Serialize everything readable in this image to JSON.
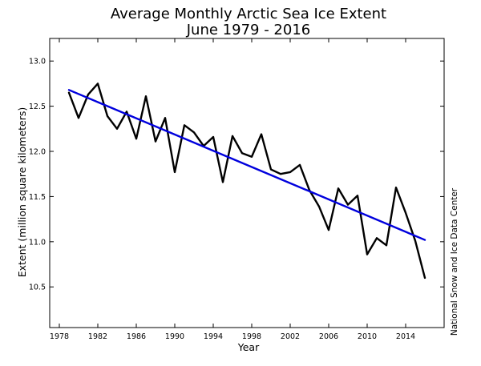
{
  "chart_data": {
    "type": "line",
    "title": "Average Monthly Arctic Sea Ice Extent",
    "subtitle": "June 1979 - 2016",
    "xlabel": "Year",
    "ylabel": "Extent (million square kilometers)",
    "credit": "National Snow and Ice Data Center",
    "xlim": [
      1977,
      2018
    ],
    "ylim": [
      10.05,
      13.25
    ],
    "xticks": [
      1978,
      1982,
      1986,
      1990,
      1994,
      1998,
      2002,
      2006,
      2010,
      2014
    ],
    "yticks": [
      10.5,
      11.0,
      11.5,
      12.0,
      12.5,
      13.0
    ],
    "xtick_labels": [
      "1978",
      "1982",
      "1986",
      "1990",
      "1994",
      "1998",
      "2002",
      "2006",
      "2010",
      "2014"
    ],
    "ytick_labels": [
      "10.5",
      "11.0",
      "11.5",
      "12.0",
      "12.5",
      "13.0"
    ],
    "grid": false,
    "series": [
      {
        "name": "June extent",
        "color": "#000000",
        "x": [
          1979,
          1980,
          1981,
          1982,
          1983,
          1984,
          1985,
          1986,
          1987,
          1988,
          1989,
          1990,
          1991,
          1992,
          1993,
          1994,
          1995,
          1996,
          1997,
          1998,
          1999,
          2000,
          2001,
          2002,
          2003,
          2004,
          2005,
          2006,
          2007,
          2008,
          2009,
          2010,
          2011,
          2012,
          2013,
          2014,
          2015,
          2016
        ],
        "values": [
          12.65,
          12.37,
          12.63,
          12.75,
          12.39,
          12.25,
          12.44,
          12.14,
          12.61,
          12.11,
          12.37,
          11.77,
          12.29,
          12.21,
          12.06,
          12.16,
          11.66,
          12.17,
          11.98,
          11.94,
          12.19,
          11.8,
          11.75,
          11.77,
          11.85,
          11.57,
          11.39,
          11.13,
          11.59,
          11.41,
          11.51,
          10.86,
          11.04,
          10.96,
          11.6,
          11.32,
          11.01,
          10.6
        ]
      },
      {
        "name": "Linear trend",
        "color": "#0000dd",
        "x": [
          1979,
          2016
        ],
        "values": [
          12.68,
          11.02
        ]
      }
    ]
  }
}
